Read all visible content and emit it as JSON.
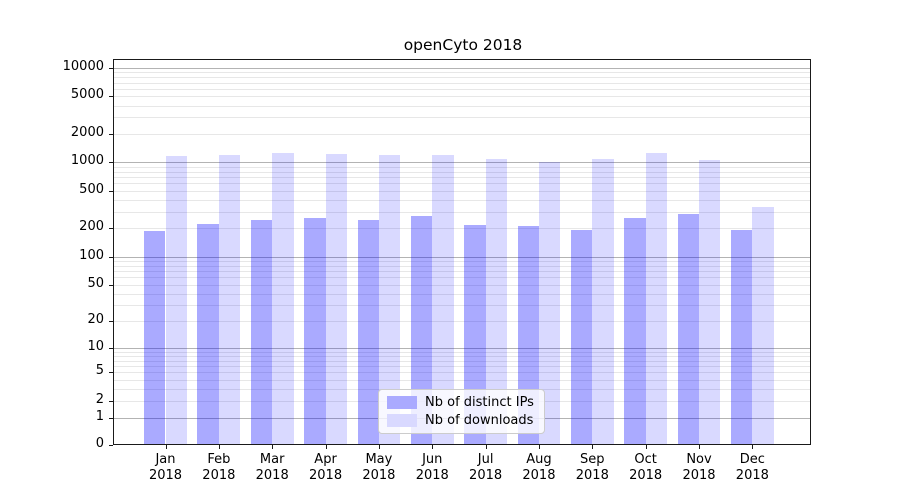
{
  "title": "openCyto 2018",
  "chart_data": {
    "type": "bar",
    "title": "openCyto 2018",
    "categories": [
      "Jan 2018",
      "Feb 2018",
      "Mar 2018",
      "Apr 2018",
      "May 2018",
      "Jun 2018",
      "Jul 2018",
      "Aug 2018",
      "Sep 2018",
      "Oct 2018",
      "Nov 2018",
      "Dec 2018"
    ],
    "series": [
      {
        "name": "Nb of distinct IPs",
        "color": "#aaaaff",
        "values": [
          187,
          222,
          245,
          258,
          245,
          269,
          219,
          212,
          193,
          260,
          283,
          193
        ]
      },
      {
        "name": "Nb of downloads",
        "color": "#d9d9ff",
        "values": [
          1170,
          1190,
          1270,
          1230,
          1210,
          1210,
          1080,
          1020,
          1090,
          1270,
          1050,
          340
        ]
      }
    ],
    "xlabel": "",
    "ylabel": "",
    "yscale": "log1p",
    "ylim": [
      0,
      12800
    ],
    "yticks": [
      0,
      1,
      2,
      5,
      10,
      20,
      50,
      100,
      200,
      500,
      1000,
      2000,
      5000,
      10000
    ],
    "grid": "on",
    "legend_position": "lower center"
  },
  "legend": {
    "items": [
      {
        "label": "Nb of distinct IPs",
        "color": "#aaaaff"
      },
      {
        "label": "Nb of downloads",
        "color": "#d9d9ff"
      }
    ]
  },
  "colors": {
    "bar_dark": "#aaaaff",
    "bar_dark_rgba": "rgba(0,0,255,0.335)",
    "bar_light": "#d9d9ff",
    "bar_light_rgba": "rgba(0,0,255,0.15)",
    "grid_major": "#b3b3b3",
    "grid_minor": "#e7e7e7",
    "spine": "#1a1a1a"
  }
}
